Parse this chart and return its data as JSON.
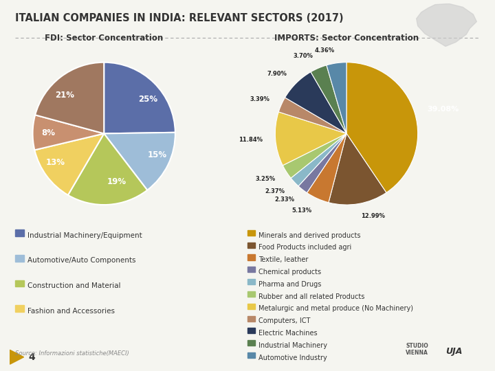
{
  "title": "ITALIAN COMPANIES IN INDIA: RELEVANT SECTORS (2017)",
  "bg_color": "#f5f5f0",
  "title_color": "#333333",
  "fdi_title": "FDI: Sector Concentration",
  "fdi_values": [
    25,
    15,
    19,
    13,
    8,
    21
  ],
  "fdi_labels": [
    "25%",
    "15%",
    "19%",
    "13%",
    "8%",
    "21%"
  ],
  "fdi_colors": [
    "#5b6ea8",
    "#9ebdd8",
    "#b5c75a",
    "#f0d060",
    "#c89070",
    "#a07860"
  ],
  "fdi_legend": [
    "Industrial Machinery/Equipment",
    "Automotive/Auto Components",
    "Construction and Material",
    "Fashion and Accessories"
  ],
  "fdi_legend_colors": [
    "#5b6ea8",
    "#9ebdd8",
    "#b5c75a",
    "#f0d060"
  ],
  "imp_title": "IMPORTS: Sector Concentration",
  "imp_values": [
    39.08,
    12.99,
    5.13,
    2.33,
    2.37,
    3.25,
    11.84,
    3.39,
    7.9,
    3.7,
    4.36
  ],
  "imp_labels": [
    "39.08%",
    "12.99%",
    "5.13%",
    "2.33%",
    "2.37%",
    "3.25%",
    "11.84%",
    "3.39%",
    "7.90%",
    "3.70%",
    "4.36%"
  ],
  "imp_colors": [
    "#c8960a",
    "#7b5530",
    "#c87830",
    "#7878a0",
    "#8ab8c8",
    "#a8c870",
    "#e8c848",
    "#b88868",
    "#2a3a5a",
    "#5a8050",
    "#5888a8"
  ],
  "imp_legend": [
    "Minerals and derived products",
    "Food Products included agri",
    "Textile, leather",
    "Chemical products",
    "Pharma and Drugs",
    "Rubber and all related Products",
    "Metalurgic and metal produce (No Machinery)",
    "Computers, ICT",
    "Electric Machines",
    "Industrial Machinery",
    "Automotive Industry"
  ],
  "imp_legend_colors": [
    "#c8960a",
    "#7b5530",
    "#c87830",
    "#7878a0",
    "#8ab8c8",
    "#a8c870",
    "#e8c848",
    "#b88868",
    "#2a3a5a",
    "#5a8050",
    "#5888a8"
  ],
  "source_text": "Source: Informazioni statistiche(MAECI)",
  "page_number": "4"
}
